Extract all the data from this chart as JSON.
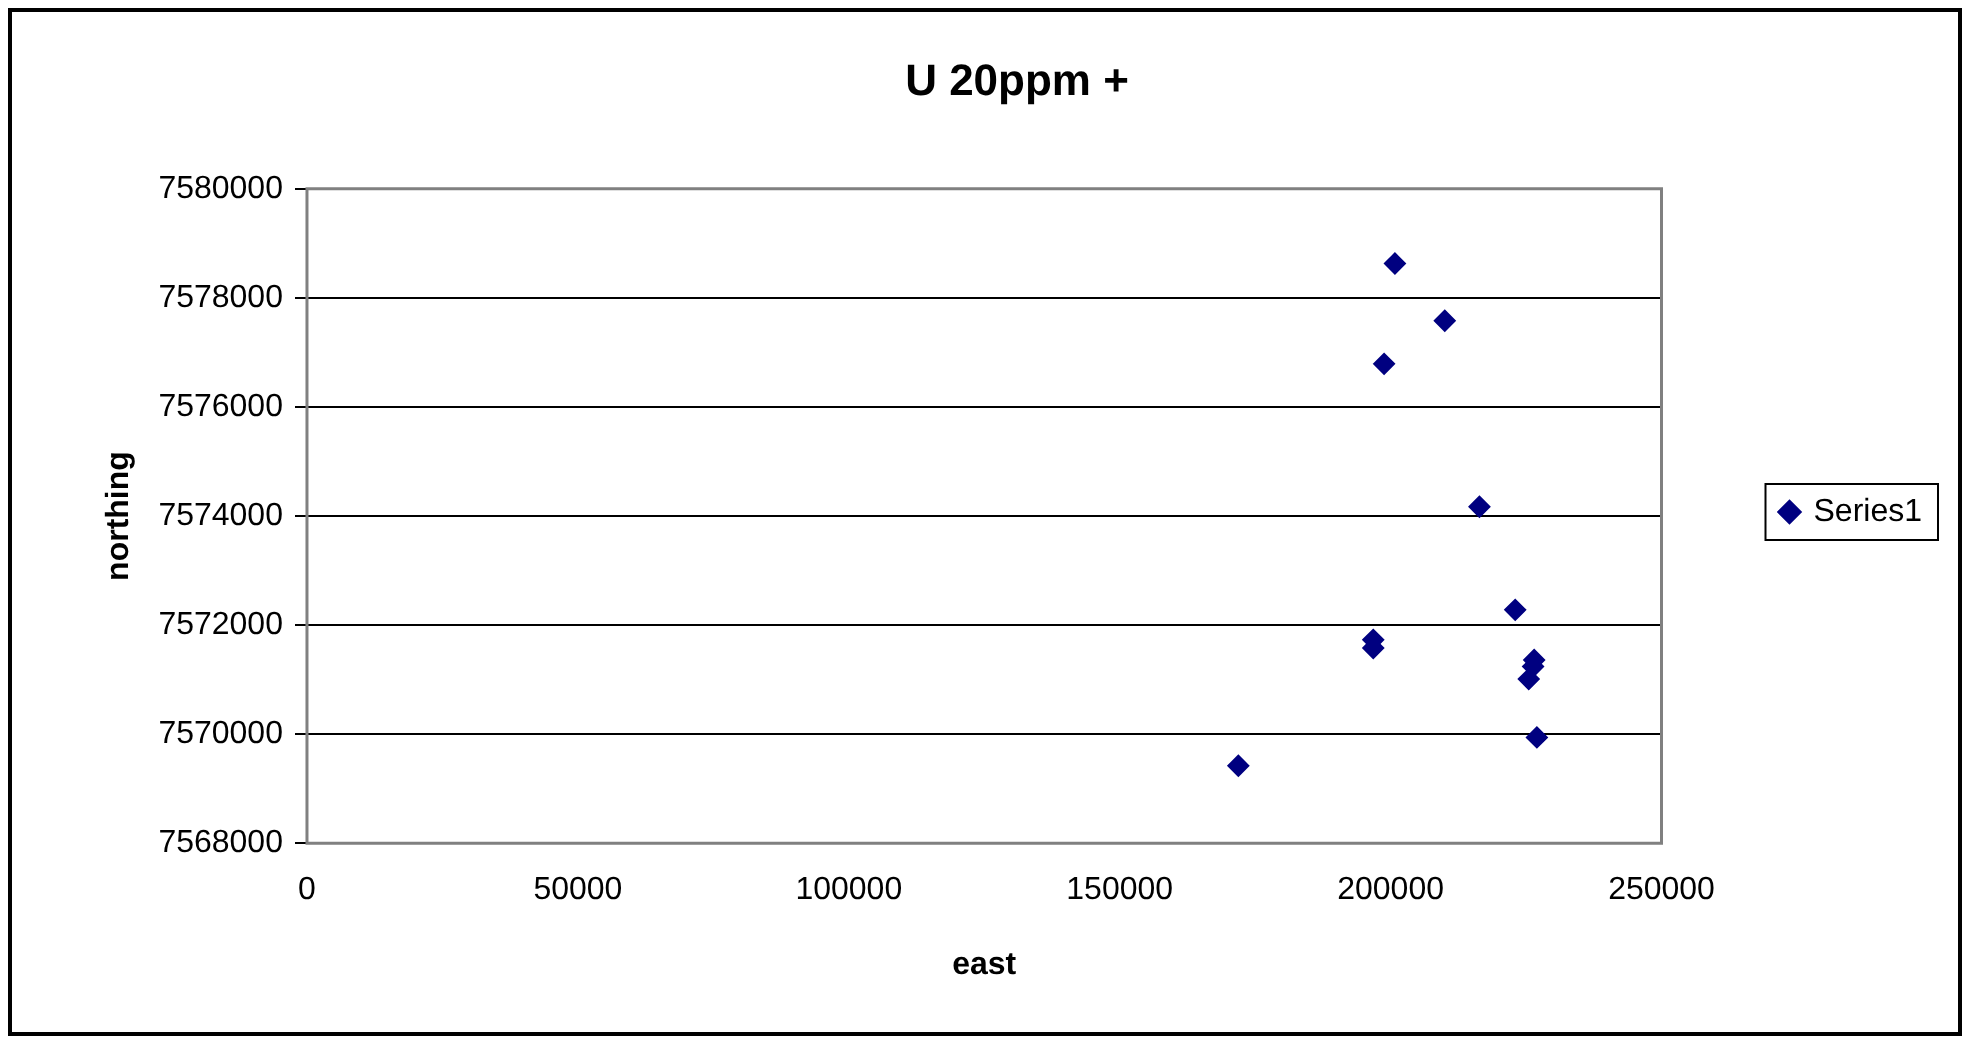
{
  "chart_data": {
    "type": "scatter",
    "title": "U 20ppm +",
    "xlabel": "east",
    "ylabel": "northing",
    "series": [
      {
        "name": "Series1",
        "color": "#000080",
        "x": [
          200800,
          210000,
          198800,
          216400,
          223000,
          196800,
          196800,
          226500,
          226300,
          225500,
          227000,
          171900
        ],
        "values": [
          7578630,
          7577580,
          7576790,
          7574170,
          7572280,
          7571730,
          7571580,
          7571360,
          7571240,
          7571010,
          7569940,
          7569420
        ]
      }
    ],
    "xlim": [
      0,
      250000
    ],
    "xticks": [
      0,
      50000,
      100000,
      150000,
      200000,
      250000
    ],
    "ylim": [
      7568000,
      7580000
    ],
    "yticks": [
      7568000,
      7570000,
      7572000,
      7574000,
      7576000,
      7578000,
      7580000
    ],
    "grid": "y",
    "legend": "right",
    "marker": "diamond"
  }
}
